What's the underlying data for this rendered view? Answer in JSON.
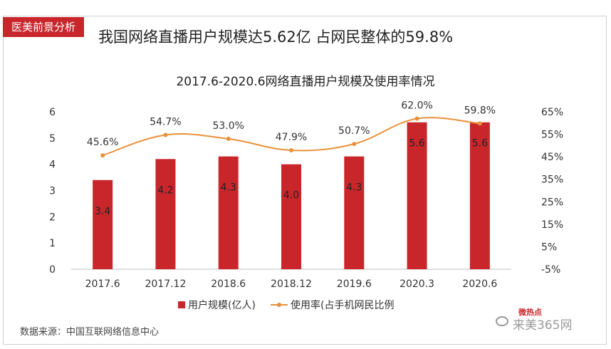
{
  "header": {
    "tag": "医美前景分析",
    "headline": "我国网络直播用户规模达5.62亿 占网民整体的59.8%"
  },
  "chart_data": {
    "type": "bar",
    "title": "2017.6-2020.6网络直播用户规模及使用率情况",
    "categories": [
      "2017.6",
      "2017.12",
      "2018.6",
      "2018.12",
      "2019.6",
      "2020.3",
      "2020.6"
    ],
    "series": [
      {
        "name": "用户规模(亿人)",
        "type": "bar",
        "axis": "left",
        "values": [
          3.4,
          4.2,
          4.3,
          4.0,
          4.3,
          5.6,
          5.6
        ],
        "labels": [
          "3.4",
          "4.2",
          "4.3",
          "4.0",
          "4.3",
          "5.6",
          "5.6"
        ]
      },
      {
        "name": "使用率(占手机网民比例",
        "type": "line",
        "axis": "right",
        "values": [
          45.6,
          54.7,
          53.0,
          47.9,
          50.7,
          62.0,
          59.8
        ],
        "labels": [
          "45.6%",
          "54.7%",
          "53.0%",
          "47.9%",
          "50.7%",
          "62.0%",
          "59.8%"
        ]
      }
    ],
    "y_left": {
      "min": 0,
      "max": 6,
      "ticks": [
        "0",
        "1",
        "2",
        "3",
        "4",
        "5",
        "6"
      ]
    },
    "y_right": {
      "min": -5,
      "max": 65,
      "ticks": [
        "-5%",
        "5%",
        "15%",
        "25%",
        "35%",
        "45%",
        "55%",
        "65%"
      ]
    },
    "grid": false,
    "legend": "bottom",
    "colors": {
      "bar": "#c9262c",
      "line": "#e8913a"
    }
  },
  "footer": {
    "source": "数据来源：中国互联网络信息中心"
  },
  "watermark": {
    "logo": "微热点",
    "text": "来美365网"
  }
}
